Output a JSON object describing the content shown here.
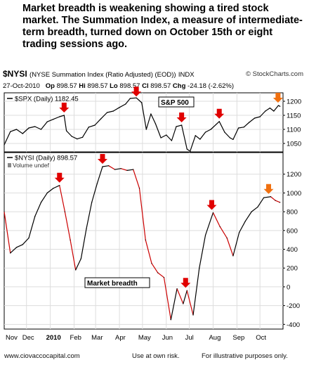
{
  "headline": "Market breadth is weakening showing a tired stock market.   The Summation Index, a measure of intermediate-term breadth, turned down on October 15th or eight trading sessions ago.",
  "header": {
    "symbol": "$NYSI",
    "description": "(NYSE Summation Index (Ratio Adjusted) (EOD))",
    "exchange": "INDX",
    "source": "© StockCharts.com",
    "date": "27-Oct-2010",
    "open_label": "Op",
    "open": "898.57",
    "high_label": "Hi",
    "high": "898.57",
    "low_label": "Lo",
    "low": "898.57",
    "close_label": "Cl",
    "close": "898.57",
    "change_label": "Chg",
    "change": "-24.18 (-2.62%)"
  },
  "footer": {
    "website": "www.ciovaccocapital.com",
    "disclaimer": "Use at own risk.",
    "note": "For illustrative purposes only."
  },
  "colors": {
    "line": "#000000",
    "down": "#cc0000",
    "arrow_red": "#e00000",
    "arrow_orange": "#f07010",
    "grid": "#dddddd"
  },
  "chart_data": [
    {
      "type": "line",
      "legend": "$SPX (Daily) 1182.45",
      "annotation": "S&P 500",
      "ylim": [
        1020,
        1230
      ],
      "yticks": [
        1050,
        1100,
        1150,
        1200
      ],
      "x": [
        "2009-11-02",
        "2009-11-10",
        "2009-11-18",
        "2009-11-26",
        "2009-12-04",
        "2009-12-12",
        "2009-12-20",
        "2009-12-28",
        "2010-01-05",
        "2010-01-13",
        "2010-01-19",
        "2010-01-22",
        "2010-01-29",
        "2010-02-05",
        "2010-02-12",
        "2010-02-20",
        "2010-02-28",
        "2010-03-08",
        "2010-03-16",
        "2010-03-24",
        "2010-04-01",
        "2010-04-09",
        "2010-04-15",
        "2010-04-23",
        "2010-04-30",
        "2010-05-06",
        "2010-05-12",
        "2010-05-18",
        "2010-05-25",
        "2010-06-01",
        "2010-06-08",
        "2010-06-14",
        "2010-06-21",
        "2010-06-28",
        "2010-07-02",
        "2010-07-09",
        "2010-07-15",
        "2010-07-22",
        "2010-07-29",
        "2010-08-09",
        "2010-08-16",
        "2010-08-23",
        "2010-08-27",
        "2010-09-03",
        "2010-09-10",
        "2010-09-17",
        "2010-09-24",
        "2010-10-01",
        "2010-10-08",
        "2010-10-14",
        "2010-10-19",
        "2010-10-25",
        "2010-10-27"
      ],
      "values": [
        1045,
        1092,
        1100,
        1085,
        1105,
        1110,
        1100,
        1127,
        1136,
        1145,
        1150,
        1095,
        1075,
        1066,
        1072,
        1108,
        1115,
        1138,
        1160,
        1165,
        1178,
        1190,
        1210,
        1212,
        1195,
        1100,
        1155,
        1120,
        1070,
        1080,
        1060,
        1110,
        1115,
        1030,
        1022,
        1078,
        1065,
        1090,
        1100,
        1128,
        1090,
        1070,
        1064,
        1105,
        1108,
        1125,
        1140,
        1145,
        1165,
        1176,
        1165,
        1185,
        1182
      ]
    },
    {
      "type": "line",
      "legend": "$NYSI (Daily) 898.57",
      "legend2": "Volume undef",
      "annotation": "Market breadth",
      "ylim": [
        -450,
        1430
      ],
      "yticks": [
        -400,
        -200,
        0,
        200,
        400,
        600,
        800,
        1000,
        1200
      ],
      "x": [
        "2009-11-02",
        "2009-11-10",
        "2009-11-18",
        "2009-11-26",
        "2009-12-04",
        "2009-12-12",
        "2009-12-20",
        "2009-12-28",
        "2010-01-05",
        "2010-01-13",
        "2010-01-20",
        "2010-01-27",
        "2010-02-03",
        "2010-02-10",
        "2010-02-17",
        "2010-02-24",
        "2010-03-03",
        "2010-03-10",
        "2010-03-18",
        "2010-03-26",
        "2010-04-03",
        "2010-04-11",
        "2010-04-19",
        "2010-04-27",
        "2010-05-05",
        "2010-05-13",
        "2010-05-21",
        "2010-05-29",
        "2010-06-07",
        "2010-06-15",
        "2010-06-23",
        "2010-06-28",
        "2010-07-06",
        "2010-07-14",
        "2010-07-22",
        "2010-08-01",
        "2010-08-10",
        "2010-08-19",
        "2010-08-27",
        "2010-09-04",
        "2010-09-12",
        "2010-09-20",
        "2010-09-28",
        "2010-10-06",
        "2010-10-15",
        "2010-10-21",
        "2010-10-27"
      ],
      "values": [
        800,
        360,
        420,
        450,
        520,
        750,
        900,
        1000,
        1050,
        1080,
        800,
        500,
        180,
        300,
        620,
        900,
        1100,
        1280,
        1290,
        1250,
        1260,
        1240,
        1250,
        1050,
        500,
        250,
        150,
        100,
        -350,
        -20,
        -180,
        -40,
        -300,
        200,
        550,
        790,
        640,
        520,
        330,
        580,
        700,
        800,
        850,
        950,
        960,
        920,
        900
      ]
    }
  ],
  "x_axis": {
    "tick_labels": [
      "Nov",
      "Dec",
      "2010",
      "Feb",
      "Mar",
      "Apr",
      "May",
      "Jun",
      "Jul",
      "Aug",
      "Sep",
      "Oct"
    ]
  }
}
